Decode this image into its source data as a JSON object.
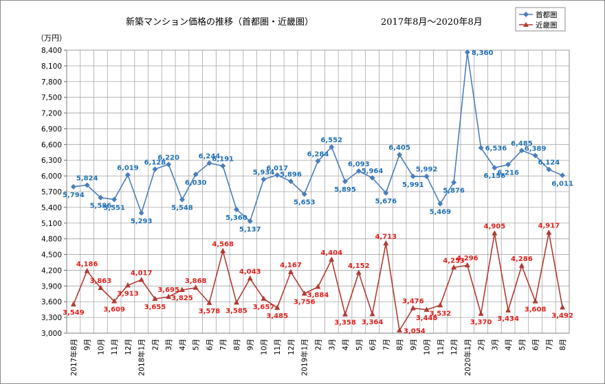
{
  "chart_data": {
    "type": "line",
    "title": "新築マンション価格の推移（首都圏・近畿圏）",
    "period": "2017年8月～2020年8月",
    "ylabel": "（万円）",
    "ylim": [
      3000,
      8400
    ],
    "yticks": [
      3000,
      3300,
      3600,
      3900,
      4200,
      4500,
      4800,
      5100,
      5400,
      5700,
      6000,
      6300,
      6600,
      6900,
      7200,
      7500,
      7800,
      8100,
      8400
    ],
    "ytick_labels": [
      "3,000",
      "3,300",
      "3,600",
      "3,900",
      "4,200",
      "4,500",
      "4,800",
      "5,100",
      "5,400",
      "5,700",
      "6,000",
      "6,300",
      "6,600",
      "6,900",
      "7,200",
      "7,500",
      "7,800",
      "8,100",
      "8,400"
    ],
    "categories": [
      "2017年8月",
      "9月",
      "10月",
      "11月",
      "12月",
      "2018年1月",
      "2月",
      "3月",
      "4月",
      "5月",
      "6月",
      "7月",
      "8月",
      "9月",
      "10月",
      "11月",
      "12月",
      "2019年1月",
      "2月",
      "3月",
      "4月",
      "5月",
      "6月",
      "7月",
      "8月",
      "9月",
      "10月",
      "11月",
      "12月",
      "2020年1月",
      "2月",
      "3月",
      "4月",
      "5月",
      "6月",
      "7月",
      "8月"
    ],
    "grid": true,
    "legend_position": "top-right",
    "series": [
      {
        "name": "首都圏",
        "color": "#4a7ebb",
        "label_color": "#1f70b4",
        "marker": "diamond",
        "values": [
          5794,
          5824,
          5586,
          5551,
          6019,
          5293,
          6128,
          6220,
          5548,
          6030,
          6244,
          6191,
          5360,
          5137,
          5934,
          6017,
          5896,
          5653,
          6284,
          6552,
          5895,
          6093,
          5964,
          5676,
          6405,
          5991,
          5992,
          5469,
          5876,
          8360,
          6536,
          6156,
          6216,
          6485,
          6389,
          6124,
          6011
        ],
        "labels": [
          {
            "i": 0,
            "text": "5,794",
            "pos": "below"
          },
          {
            "i": 1,
            "text": "5,824",
            "pos": "above"
          },
          {
            "i": 2,
            "text": "5,586",
            "pos": "below"
          },
          {
            "i": 3,
            "text": "5,551",
            "pos": "below"
          },
          {
            "i": 4,
            "text": "6,019",
            "pos": "above"
          },
          {
            "i": 5,
            "text": "5,293",
            "pos": "below"
          },
          {
            "i": 6,
            "text": "6,128",
            "pos": "above"
          },
          {
            "i": 7,
            "text": "6,220",
            "pos": "above"
          },
          {
            "i": 8,
            "text": "5,548",
            "pos": "below"
          },
          {
            "i": 9,
            "text": "6,030",
            "pos": "below"
          },
          {
            "i": 10,
            "text": "6,244",
            "pos": "above"
          },
          {
            "i": 11,
            "text": "6,191",
            "pos": "above"
          },
          {
            "i": 12,
            "text": "5,360",
            "pos": "below"
          },
          {
            "i": 13,
            "text": "5,137",
            "pos": "below"
          },
          {
            "i": 14,
            "text": "5,934",
            "pos": "above"
          },
          {
            "i": 15,
            "text": "6,017",
            "pos": "above"
          },
          {
            "i": 16,
            "text": "5,896",
            "pos": "above"
          },
          {
            "i": 17,
            "text": "5,653",
            "pos": "below"
          },
          {
            "i": 18,
            "text": "6,284",
            "pos": "above"
          },
          {
            "i": 19,
            "text": "6,552",
            "pos": "above"
          },
          {
            "i": 20,
            "text": "5,895",
            "pos": "below"
          },
          {
            "i": 21,
            "text": "6,093",
            "pos": "above"
          },
          {
            "i": 22,
            "text": "5,964",
            "pos": "above"
          },
          {
            "i": 23,
            "text": "5,676",
            "pos": "below"
          },
          {
            "i": 24,
            "text": "6,405",
            "pos": "above"
          },
          {
            "i": 25,
            "text": "5,991",
            "pos": "below"
          },
          {
            "i": 26,
            "text": "5,992",
            "pos": "above"
          },
          {
            "i": 27,
            "text": "5,469",
            "pos": "below"
          },
          {
            "i": 28,
            "text": "5,876",
            "pos": "below"
          },
          {
            "i": 29,
            "text": "8,360",
            "pos": "right"
          },
          {
            "i": 30,
            "text": "6,536",
            "pos": "right"
          },
          {
            "i": 31,
            "text": "6,156",
            "pos": "below"
          },
          {
            "i": 32,
            "text": "6,216",
            "pos": "below"
          },
          {
            "i": 33,
            "text": "6,485",
            "pos": "above"
          },
          {
            "i": 34,
            "text": "6,389",
            "pos": "above"
          },
          {
            "i": 35,
            "text": "6,124",
            "pos": "above"
          },
          {
            "i": 36,
            "text": "6,011",
            "pos": "below"
          }
        ]
      },
      {
        "name": "近畿圏",
        "color": "#b03a32",
        "label_color": "#e0201b",
        "marker": "triangle",
        "values": [
          3549,
          4186,
          3863,
          3609,
          3913,
          4017,
          3655,
          3695,
          3825,
          3868,
          3578,
          4568,
          3585,
          4043,
          3657,
          3485,
          4167,
          3756,
          3884,
          4404,
          3358,
          4152,
          3364,
          4713,
          3054,
          3476,
          3448,
          3532,
          4253,
          4296,
          3370,
          4905,
          3434,
          4286,
          3608,
          4917,
          3492
        ],
        "labels": [
          {
            "i": 0,
            "text": "3,549",
            "pos": "below"
          },
          {
            "i": 1,
            "text": "4,186",
            "pos": "above"
          },
          {
            "i": 2,
            "text": "3,863",
            "pos": "above"
          },
          {
            "i": 3,
            "text": "3,609",
            "pos": "below"
          },
          {
            "i": 4,
            "text": "3,913",
            "pos": "below"
          },
          {
            "i": 5,
            "text": "4,017",
            "pos": "above"
          },
          {
            "i": 6,
            "text": "3,655",
            "pos": "below"
          },
          {
            "i": 7,
            "text": "3,695",
            "pos": "above"
          },
          {
            "i": 8,
            "text": "3,825",
            "pos": "below"
          },
          {
            "i": 9,
            "text": "3,868",
            "pos": "above"
          },
          {
            "i": 10,
            "text": "3,578",
            "pos": "below"
          },
          {
            "i": 11,
            "text": "4,568",
            "pos": "above"
          },
          {
            "i": 12,
            "text": "3,585",
            "pos": "below"
          },
          {
            "i": 13,
            "text": "4,043",
            "pos": "above"
          },
          {
            "i": 14,
            "text": "3,657",
            "pos": "below"
          },
          {
            "i": 15,
            "text": "3,485",
            "pos": "below"
          },
          {
            "i": 16,
            "text": "4,167",
            "pos": "above"
          },
          {
            "i": 17,
            "text": "3,756",
            "pos": "below"
          },
          {
            "i": 18,
            "text": "3,884",
            "pos": "below"
          },
          {
            "i": 19,
            "text": "4,404",
            "pos": "above"
          },
          {
            "i": 20,
            "text": "3,358",
            "pos": "below"
          },
          {
            "i": 21,
            "text": "4,152",
            "pos": "above"
          },
          {
            "i": 22,
            "text": "3,364",
            "pos": "below"
          },
          {
            "i": 23,
            "text": "4,713",
            "pos": "above"
          },
          {
            "i": 24,
            "text": "3,054",
            "pos": "right"
          },
          {
            "i": 25,
            "text": "3,476",
            "pos": "above"
          },
          {
            "i": 26,
            "text": "3,448",
            "pos": "below"
          },
          {
            "i": 27,
            "text": "3,532",
            "pos": "below"
          },
          {
            "i": 28,
            "text": "4,253",
            "pos": "above"
          },
          {
            "i": 29,
            "text": "4,296",
            "pos": "above"
          },
          {
            "i": 30,
            "text": "3,370",
            "pos": "below"
          },
          {
            "i": 31,
            "text": "4,905",
            "pos": "above"
          },
          {
            "i": 32,
            "text": "3,434",
            "pos": "below"
          },
          {
            "i": 33,
            "text": "4,286",
            "pos": "above"
          },
          {
            "i": 34,
            "text": "3,608",
            "pos": "below"
          },
          {
            "i": 35,
            "text": "4,917",
            "pos": "above"
          },
          {
            "i": 36,
            "text": "3,492",
            "pos": "below"
          }
        ]
      }
    ]
  }
}
